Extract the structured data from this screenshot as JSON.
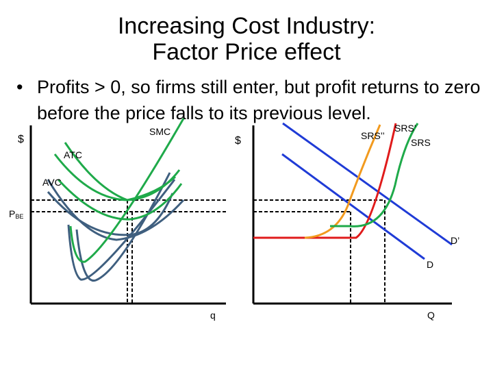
{
  "title": {
    "line1": "Increasing Cost Industry:",
    "line2": "Factor Price effect"
  },
  "bullet": {
    "marker": "•",
    "text": "Profits > 0, so firms still enter, but profit returns to zero before the price falls to its previous level."
  },
  "firm_graph": {
    "y_label": "$",
    "x_label": "q",
    "price_label": "P",
    "price_subscript": "BE",
    "curve_labels": {
      "smc": "SMC",
      "atc": "ATC",
      "avc": "AVC"
    }
  },
  "market_graph": {
    "y_label": "$",
    "x_label": "Q",
    "curve_labels": {
      "srs_double": "SRS’’",
      "srs_prime": "SRS’",
      "srs": "SRS",
      "d_prime": "D’",
      "d": "D"
    }
  },
  "colors": {
    "axis": "#000000",
    "green": "#1faa4a",
    "gray_blue": "#3f5f7f",
    "blue": "#1f3bd6",
    "red": "#e01b1b",
    "orange": "#f29a1e"
  }
}
